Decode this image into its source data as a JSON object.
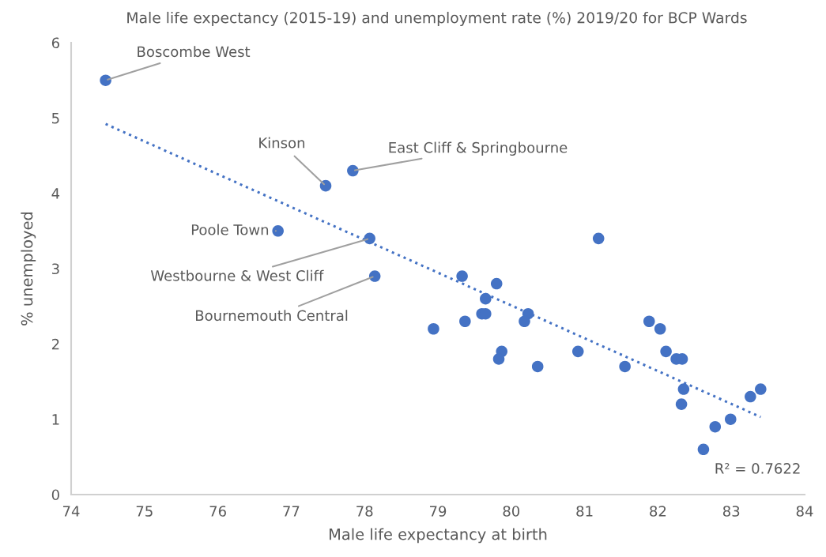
{
  "chart_data": {
    "type": "scatter",
    "title": "Male life expectancy (2015-19) and unemployment rate (%) 2019/20 for BCP Wards",
    "xlabel": "Male life expectancy at birth",
    "ylabel": "% unemployed",
    "series": [
      {
        "color": "#4472c4",
        "marker": "circle",
        "x": [
          74.47,
          77.47,
          77.84,
          76.82,
          78.07,
          78.14,
          81.19,
          79.33,
          79.8,
          79.65,
          79.6,
          79.65,
          79.37,
          78.94,
          80.23,
          80.18,
          79.87,
          79.83,
          80.36,
          80.91,
          81.55,
          81.88,
          82.03,
          82.11,
          82.25,
          82.33,
          82.35,
          82.32,
          82.62,
          82.78,
          82.99,
          83.26,
          83.4
        ],
        "values": [
          5.5,
          4.1,
          4.3,
          3.5,
          3.4,
          2.9,
          3.4,
          2.9,
          2.8,
          2.6,
          2.4,
          2.4,
          2.3,
          2.2,
          2.4,
          2.3,
          1.9,
          1.8,
          1.7,
          1.9,
          1.7,
          2.3,
          2.2,
          1.9,
          1.8,
          1.8,
          1.4,
          1.2,
          0.6,
          0.9,
          1.0,
          1.3,
          1.4
        ]
      },
      {
        "type": "line",
        "color": "#4472c4",
        "line_style": "dotted",
        "x": [
          74.47,
          83.4
        ],
        "values": [
          4.92,
          1.03
        ]
      }
    ],
    "annotations": [
      {
        "text": "Boscombe West",
        "x": 74.47,
        "y": 5.5
      },
      {
        "text": "Kinson",
        "x": 77.47,
        "y": 4.1
      },
      {
        "text": "East Cliff & Springbourne",
        "x": 77.84,
        "y": 4.3
      },
      {
        "text": "Poole Town",
        "x": 76.82,
        "y": 3.5
      },
      {
        "text": "Westbourne & West Cliff",
        "x": 78.07,
        "y": 3.4
      },
      {
        "text": "Bournemouth Central",
        "x": 78.14,
        "y": 2.9
      },
      "R² = 0.7622"
    ],
    "xlim": [
      74,
      84
    ],
    "xticks": [
      74,
      75,
      76,
      77,
      78,
      79,
      80,
      81,
      82,
      83,
      84
    ],
    "ylim": [
      0,
      6
    ],
    "yticks": [
      0,
      1,
      2,
      3,
      4,
      5,
      6
    ],
    "grid": false,
    "legend": false
  }
}
